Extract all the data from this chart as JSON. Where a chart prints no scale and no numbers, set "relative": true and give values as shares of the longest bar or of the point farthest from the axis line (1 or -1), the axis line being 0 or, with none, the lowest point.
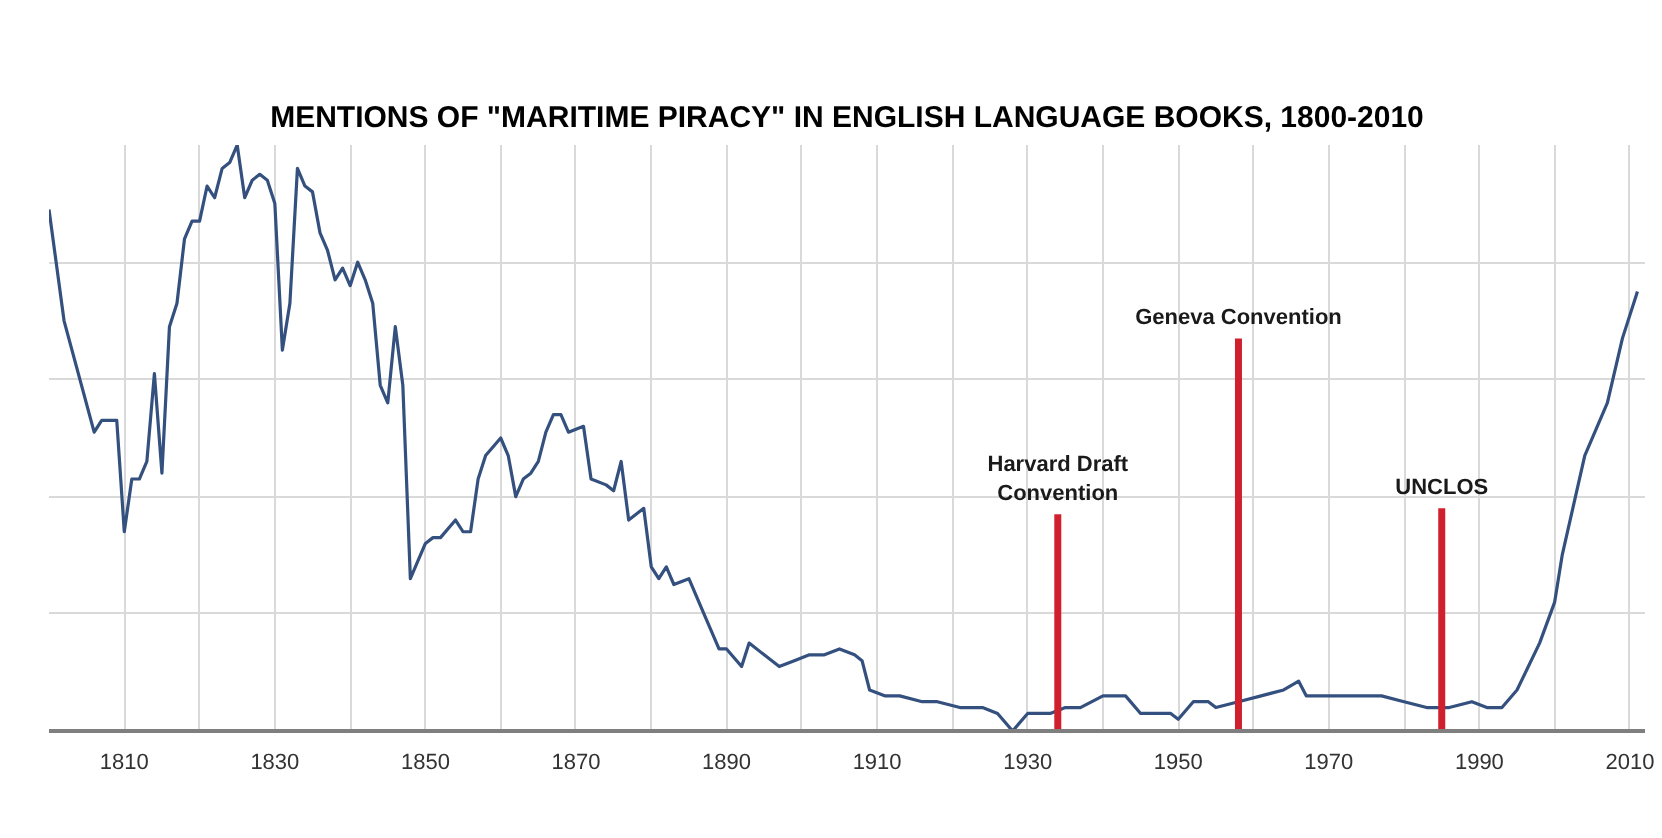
{
  "chart_data": {
    "type": "line",
    "title": "MENTIONS OF \"MARITIME PIRACY\" IN ENGLISH LANGUAGE BOOKS, 1800-2010",
    "relative": true,
    "grid": true,
    "color": "#34507e",
    "x": [
      1800,
      1802,
      1806,
      1807,
      1809,
      1810,
      1811,
      1812,
      1813,
      1814,
      1815,
      1816,
      1817,
      1818,
      1819,
      1820,
      1821,
      1822,
      1823,
      1824,
      1825,
      1826,
      1827,
      1828,
      1829,
      1830,
      1831,
      1832,
      1833,
      1834,
      1835,
      1836,
      1837,
      1838,
      1839,
      1840,
      1841,
      1842,
      1843,
      1844,
      1845,
      1846,
      1847,
      1848,
      1850,
      1851,
      1852,
      1854,
      1855,
      1856,
      1857,
      1858,
      1860,
      1861,
      1862,
      1863,
      1864,
      1865,
      1866,
      1867,
      1868,
      1869,
      1871,
      1872,
      1874,
      1875,
      1876,
      1877,
      1879,
      1880,
      1881,
      1882,
      1883,
      1885,
      1887,
      1889,
      1890,
      1892,
      1893,
      1895,
      1897,
      1899,
      1901,
      1903,
      1905,
      1907,
      1908,
      1909,
      1911,
      1913,
      1916,
      1918,
      1921,
      1924,
      1926,
      1928,
      1930,
      1933,
      1935,
      1937,
      1940,
      1943,
      1945,
      1949,
      1950,
      1952,
      1954,
      1955,
      1958,
      1961,
      1964,
      1966,
      1967,
      1970,
      1977,
      1980,
      1983,
      1986,
      1989,
      1991,
      1993,
      1995,
      1998,
      2000,
      2001,
      2004,
      2007,
      2009,
      2011
    ],
    "values": [
      0.89,
      0.7,
      0.51,
      0.53,
      0.53,
      0.34,
      0.43,
      0.43,
      0.46,
      0.61,
      0.44,
      0.69,
      0.73,
      0.84,
      0.87,
      0.87,
      0.93,
      0.91,
      0.96,
      0.97,
      1.0,
      0.91,
      0.94,
      0.95,
      0.94,
      0.9,
      0.65,
      0.73,
      0.96,
      0.93,
      0.92,
      0.85,
      0.82,
      0.77,
      0.79,
      0.76,
      0.8,
      0.77,
      0.73,
      0.59,
      0.56,
      0.69,
      0.59,
      0.26,
      0.32,
      0.33,
      0.33,
      0.36,
      0.34,
      0.34,
      0.43,
      0.47,
      0.5,
      0.47,
      0.4,
      0.43,
      0.44,
      0.46,
      0.51,
      0.54,
      0.54,
      0.51,
      0.52,
      0.43,
      0.42,
      0.41,
      0.46,
      0.36,
      0.38,
      0.28,
      0.26,
      0.28,
      0.25,
      0.26,
      0.2,
      0.14,
      0.14,
      0.11,
      0.15,
      0.13,
      0.11,
      0.12,
      0.13,
      0.13,
      0.14,
      0.13,
      0.12,
      0.07,
      0.06,
      0.06,
      0.05,
      0.05,
      0.04,
      0.04,
      0.03,
      0.0,
      0.03,
      0.03,
      0.04,
      0.04,
      0.06,
      0.06,
      0.03,
      0.03,
      0.02,
      0.05,
      0.05,
      0.04,
      0.05,
      0.06,
      0.07,
      0.085,
      0.06,
      0.06,
      0.06,
      0.05,
      0.04,
      0.04,
      0.05,
      0.04,
      0.04,
      0.07,
      0.15,
      0.22,
      0.3,
      0.47,
      0.56,
      0.67,
      0.75
    ],
    "xlim": [
      1800,
      2012
    ],
    "xticks": [
      1810,
      {
        "value": 1820,
        "label": null
      },
      1830,
      {
        "value": 1840,
        "label": null
      },
      1850,
      {
        "value": 1860,
        "label": null
      },
      1870,
      {
        "value": 1880,
        "label": null
      },
      1890,
      {
        "value": 1900,
        "label": null
      },
      1910,
      {
        "value": 1920,
        "label": null
      },
      1930,
      {
        "value": 1940,
        "label": null
      },
      1950,
      {
        "value": 1960,
        "label": null
      },
      1970,
      {
        "value": 1980,
        "label": null
      },
      1990,
      {
        "value": 2000,
        "label": null
      },
      2010
    ],
    "ref_lines": [
      {
        "axis": "x",
        "value": 1934,
        "label": "Harvard Draft\nConvention",
        "color": "#d0202e"
      },
      {
        "axis": "x",
        "value": 1958,
        "label": "Geneva Convention",
        "color": "#d0202e"
      },
      {
        "axis": "x",
        "value": 1985,
        "label": "UNCLOS",
        "color": "#d0202e"
      }
    ]
  }
}
